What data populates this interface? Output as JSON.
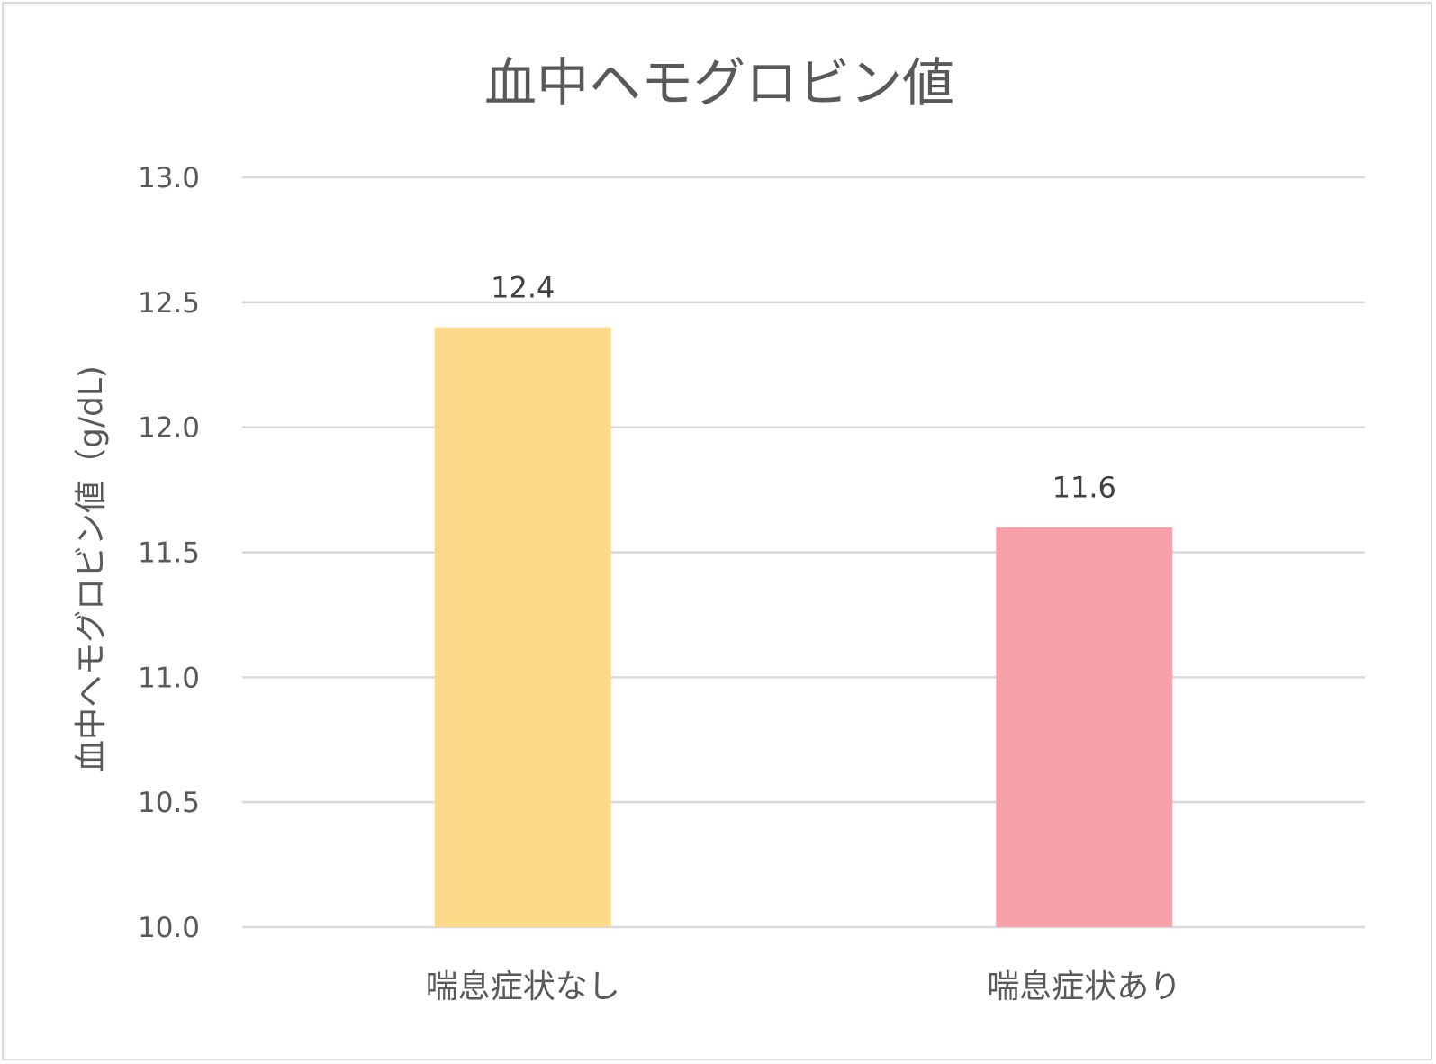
{
  "chart_data": {
    "type": "bar",
    "title": "血中ヘモグロビン値",
    "xlabel": "",
    "ylabel": "血中ヘモグロビン値（g/dL)",
    "categories": [
      "喘息症状なし",
      "喘息症状あり"
    ],
    "values": [
      12.4,
      11.6
    ],
    "value_labels": [
      "12.4",
      "11.6"
    ],
    "bar_colors": [
      "#fdd98a",
      "#f9a1aa"
    ],
    "ylim": [
      10.0,
      13.0
    ],
    "yticks": [
      "10.0",
      "10.5",
      "11.0",
      "11.5",
      "12.0",
      "12.5",
      "13.0"
    ],
    "ytick_values": [
      10.0,
      10.5,
      11.0,
      11.5,
      12.0,
      12.5,
      13.0
    ],
    "grid": true,
    "legend": "none"
  }
}
